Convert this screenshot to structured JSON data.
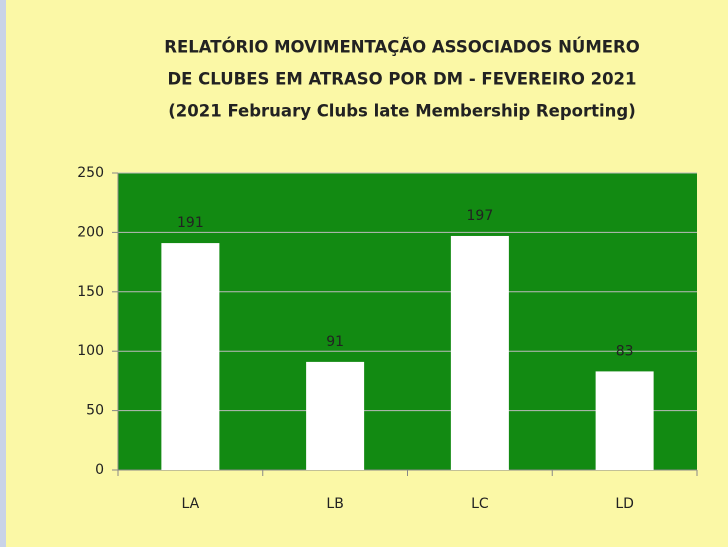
{
  "chart_data": {
    "type": "bar",
    "title": [
      "RELATÓRIO MOVIMENTAÇÃO  ASSOCIADOS NÚMERO",
      "DE CLUBES EM ATRASO POR DM - FEVEREIRO 2021",
      "(2021 February Clubs late Membership Reporting)"
    ],
    "categories": [
      "LA",
      "LB",
      "LC",
      "LD"
    ],
    "values": [
      191,
      91,
      197,
      83
    ],
    "color": "#ffffff",
    "ylim": [
      0,
      250
    ],
    "yticks": [
      0,
      50,
      100,
      150,
      200,
      250
    ],
    "grid": true
  }
}
